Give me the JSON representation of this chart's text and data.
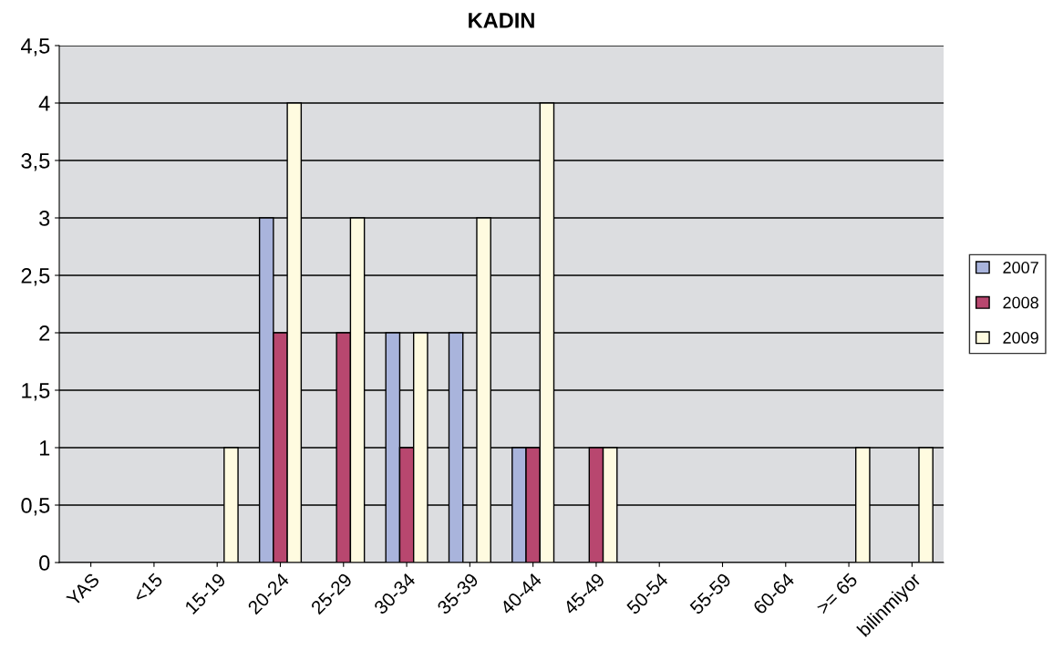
{
  "chart_data": {
    "type": "bar",
    "title": "KADIN",
    "categories": [
      "YAS",
      "<15",
      "15-19",
      "20-24",
      "25-29",
      "30-34",
      "35-39",
      "40-44",
      "45-49",
      "50-54",
      "55-59",
      "60-64",
      ">= 65",
      "bilinmiyor"
    ],
    "series": [
      {
        "name": "2007",
        "color": "#a9b4dc",
        "values": [
          0,
          0,
          0,
          3,
          0,
          2,
          2,
          1,
          0,
          0,
          0,
          0,
          0,
          0
        ]
      },
      {
        "name": "2008",
        "color": "#b8476f",
        "values": [
          0,
          0,
          0,
          2,
          2,
          1,
          0,
          1,
          1,
          0,
          0,
          0,
          0,
          0
        ]
      },
      {
        "name": "2009",
        "color": "#fffbe0",
        "values": [
          0,
          0,
          1,
          4,
          3,
          2,
          3,
          4,
          1,
          0,
          0,
          0,
          1,
          1
        ]
      }
    ],
    "ylim": [
      0,
      4.5
    ],
    "yticks": [
      0,
      {
        "value": 0.5,
        "label": "0,5"
      },
      1,
      {
        "value": 1.5,
        "label": "1,5"
      },
      2,
      {
        "value": 2.5,
        "label": "2,5"
      },
      3,
      {
        "value": 3.5,
        "label": "3,5"
      },
      4,
      {
        "value": 4.5,
        "label": "4,5"
      }
    ],
    "grid": "y",
    "legend": "right"
  }
}
